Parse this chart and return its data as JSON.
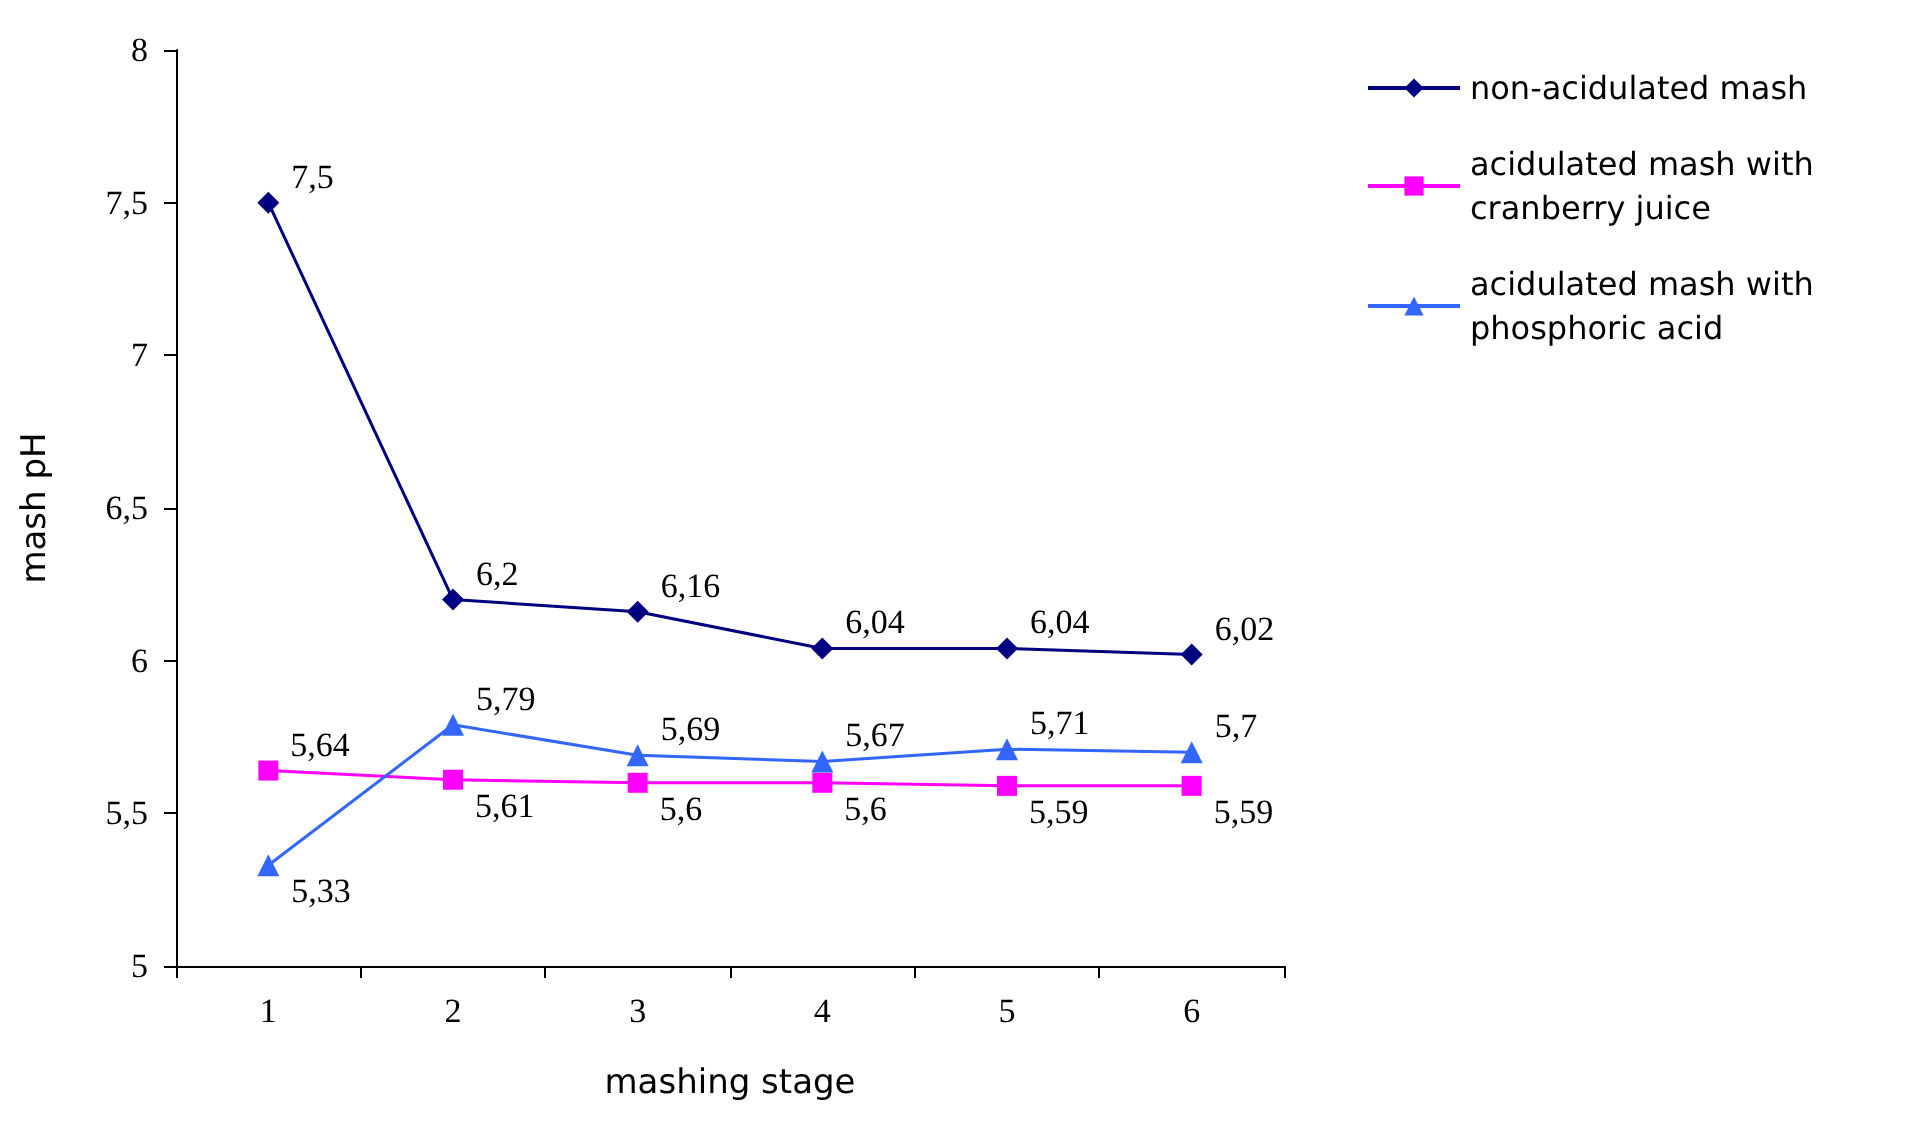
{
  "chart_data": {
    "type": "line",
    "xlabel": "mashing stage",
    "ylabel": "mash pH",
    "categories": [
      "1",
      "2",
      "3",
      "4",
      "5",
      "6"
    ],
    "ylim": [
      5,
      8
    ],
    "yticks": [
      5,
      {
        "value": 5.5,
        "label": "5,5"
      },
      6,
      {
        "value": 6.5,
        "label": "6,5"
      },
      7,
      {
        "value": 7.5,
        "label": "7,5"
      },
      8
    ],
    "grid": false,
    "legend": "top right",
    "series": [
      {
        "name": "non-acidulated mash",
        "color": "#000080",
        "marker": "diamond",
        "values": [
          7.5,
          6.2,
          6.16,
          6.04,
          6.04,
          6.02
        ],
        "value_labels": [
          "7,5",
          "6,2",
          "6,16",
          "6,04",
          "6,04",
          "6,02"
        ]
      },
      {
        "name": "acidulated mash with cranberry juice",
        "color": "#ff00ff",
        "marker": "square",
        "values": [
          5.64,
          5.61,
          5.6,
          5.6,
          5.59,
          5.59
        ],
        "value_labels": [
          "5,64",
          "5,61",
          "5,6",
          "5,6",
          "5,59",
          "5,59"
        ]
      },
      {
        "name": "acidulated mash with phosphoric acid",
        "color": "#3366ff",
        "marker": "triangle",
        "values": [
          5.33,
          5.79,
          5.69,
          5.67,
          5.71,
          5.7
        ],
        "value_labels": [
          "5,33",
          "5,79",
          "5,69",
          "5,67",
          "5,71",
          "5,7"
        ]
      }
    ]
  }
}
